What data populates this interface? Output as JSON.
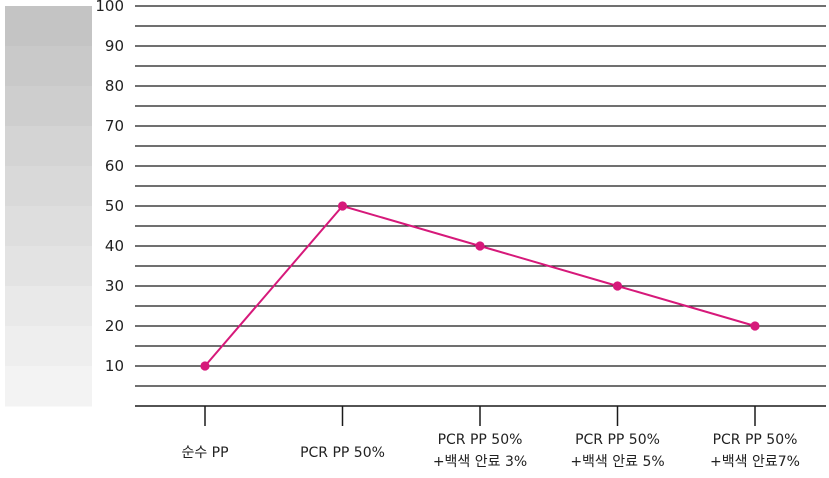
{
  "chart_data": {
    "type": "line",
    "categories": [
      [
        "순수 PP"
      ],
      [
        "PCR PP 50%"
      ],
      [
        "PCR PP 50%",
        "+백색 안료 3%"
      ],
      [
        "PCR PP 50%",
        "+백색 안료 5%"
      ],
      [
        "PCR PP 50%",
        "+백색 안료7%"
      ]
    ],
    "values": [
      10,
      50,
      40,
      30,
      20
    ],
    "yticks": [
      10,
      20,
      30,
      40,
      50,
      60,
      70,
      80,
      90,
      100
    ],
    "ylim": [
      0,
      100
    ],
    "title": "",
    "xlabel": "",
    "ylabel": "",
    "grid": true,
    "legend": "none",
    "colors": {
      "line": "#d6197a",
      "grid": "#1a1a1a",
      "scale_band_top": "#c4c4c4",
      "scale_band_bottom": "#f3f3f3"
    }
  }
}
